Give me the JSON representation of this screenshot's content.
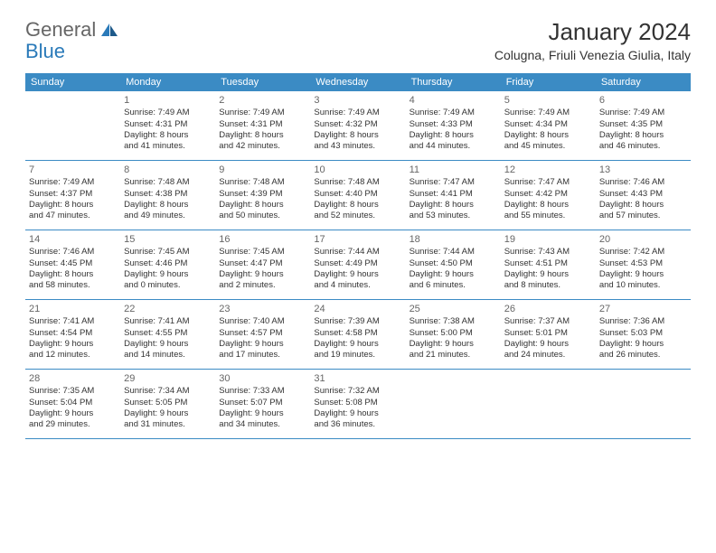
{
  "logo": {
    "text1": "General",
    "text2": "Blue"
  },
  "title": "January 2024",
  "location": "Colugna, Friuli Venezia Giulia, Italy",
  "colors": {
    "header_bg": "#3b8bc4",
    "header_text": "#ffffff",
    "border": "#3b8bc4",
    "logo_blue": "#2a7ab9",
    "logo_gray": "#666666"
  },
  "dayNames": [
    "Sunday",
    "Monday",
    "Tuesday",
    "Wednesday",
    "Thursday",
    "Friday",
    "Saturday"
  ],
  "weeks": [
    [
      null,
      {
        "n": "1",
        "sr": "Sunrise: 7:49 AM",
        "ss": "Sunset: 4:31 PM",
        "d1": "Daylight: 8 hours",
        "d2": "and 41 minutes."
      },
      {
        "n": "2",
        "sr": "Sunrise: 7:49 AM",
        "ss": "Sunset: 4:31 PM",
        "d1": "Daylight: 8 hours",
        "d2": "and 42 minutes."
      },
      {
        "n": "3",
        "sr": "Sunrise: 7:49 AM",
        "ss": "Sunset: 4:32 PM",
        "d1": "Daylight: 8 hours",
        "d2": "and 43 minutes."
      },
      {
        "n": "4",
        "sr": "Sunrise: 7:49 AM",
        "ss": "Sunset: 4:33 PM",
        "d1": "Daylight: 8 hours",
        "d2": "and 44 minutes."
      },
      {
        "n": "5",
        "sr": "Sunrise: 7:49 AM",
        "ss": "Sunset: 4:34 PM",
        "d1": "Daylight: 8 hours",
        "d2": "and 45 minutes."
      },
      {
        "n": "6",
        "sr": "Sunrise: 7:49 AM",
        "ss": "Sunset: 4:35 PM",
        "d1": "Daylight: 8 hours",
        "d2": "and 46 minutes."
      }
    ],
    [
      {
        "n": "7",
        "sr": "Sunrise: 7:49 AM",
        "ss": "Sunset: 4:37 PM",
        "d1": "Daylight: 8 hours",
        "d2": "and 47 minutes."
      },
      {
        "n": "8",
        "sr": "Sunrise: 7:48 AM",
        "ss": "Sunset: 4:38 PM",
        "d1": "Daylight: 8 hours",
        "d2": "and 49 minutes."
      },
      {
        "n": "9",
        "sr": "Sunrise: 7:48 AM",
        "ss": "Sunset: 4:39 PM",
        "d1": "Daylight: 8 hours",
        "d2": "and 50 minutes."
      },
      {
        "n": "10",
        "sr": "Sunrise: 7:48 AM",
        "ss": "Sunset: 4:40 PM",
        "d1": "Daylight: 8 hours",
        "d2": "and 52 minutes."
      },
      {
        "n": "11",
        "sr": "Sunrise: 7:47 AM",
        "ss": "Sunset: 4:41 PM",
        "d1": "Daylight: 8 hours",
        "d2": "and 53 minutes."
      },
      {
        "n": "12",
        "sr": "Sunrise: 7:47 AM",
        "ss": "Sunset: 4:42 PM",
        "d1": "Daylight: 8 hours",
        "d2": "and 55 minutes."
      },
      {
        "n": "13",
        "sr": "Sunrise: 7:46 AM",
        "ss": "Sunset: 4:43 PM",
        "d1": "Daylight: 8 hours",
        "d2": "and 57 minutes."
      }
    ],
    [
      {
        "n": "14",
        "sr": "Sunrise: 7:46 AM",
        "ss": "Sunset: 4:45 PM",
        "d1": "Daylight: 8 hours",
        "d2": "and 58 minutes."
      },
      {
        "n": "15",
        "sr": "Sunrise: 7:45 AM",
        "ss": "Sunset: 4:46 PM",
        "d1": "Daylight: 9 hours",
        "d2": "and 0 minutes."
      },
      {
        "n": "16",
        "sr": "Sunrise: 7:45 AM",
        "ss": "Sunset: 4:47 PM",
        "d1": "Daylight: 9 hours",
        "d2": "and 2 minutes."
      },
      {
        "n": "17",
        "sr": "Sunrise: 7:44 AM",
        "ss": "Sunset: 4:49 PM",
        "d1": "Daylight: 9 hours",
        "d2": "and 4 minutes."
      },
      {
        "n": "18",
        "sr": "Sunrise: 7:44 AM",
        "ss": "Sunset: 4:50 PM",
        "d1": "Daylight: 9 hours",
        "d2": "and 6 minutes."
      },
      {
        "n": "19",
        "sr": "Sunrise: 7:43 AM",
        "ss": "Sunset: 4:51 PM",
        "d1": "Daylight: 9 hours",
        "d2": "and 8 minutes."
      },
      {
        "n": "20",
        "sr": "Sunrise: 7:42 AM",
        "ss": "Sunset: 4:53 PM",
        "d1": "Daylight: 9 hours",
        "d2": "and 10 minutes."
      }
    ],
    [
      {
        "n": "21",
        "sr": "Sunrise: 7:41 AM",
        "ss": "Sunset: 4:54 PM",
        "d1": "Daylight: 9 hours",
        "d2": "and 12 minutes."
      },
      {
        "n": "22",
        "sr": "Sunrise: 7:41 AM",
        "ss": "Sunset: 4:55 PM",
        "d1": "Daylight: 9 hours",
        "d2": "and 14 minutes."
      },
      {
        "n": "23",
        "sr": "Sunrise: 7:40 AM",
        "ss": "Sunset: 4:57 PM",
        "d1": "Daylight: 9 hours",
        "d2": "and 17 minutes."
      },
      {
        "n": "24",
        "sr": "Sunrise: 7:39 AM",
        "ss": "Sunset: 4:58 PM",
        "d1": "Daylight: 9 hours",
        "d2": "and 19 minutes."
      },
      {
        "n": "25",
        "sr": "Sunrise: 7:38 AM",
        "ss": "Sunset: 5:00 PM",
        "d1": "Daylight: 9 hours",
        "d2": "and 21 minutes."
      },
      {
        "n": "26",
        "sr": "Sunrise: 7:37 AM",
        "ss": "Sunset: 5:01 PM",
        "d1": "Daylight: 9 hours",
        "d2": "and 24 minutes."
      },
      {
        "n": "27",
        "sr": "Sunrise: 7:36 AM",
        "ss": "Sunset: 5:03 PM",
        "d1": "Daylight: 9 hours",
        "d2": "and 26 minutes."
      }
    ],
    [
      {
        "n": "28",
        "sr": "Sunrise: 7:35 AM",
        "ss": "Sunset: 5:04 PM",
        "d1": "Daylight: 9 hours",
        "d2": "and 29 minutes."
      },
      {
        "n": "29",
        "sr": "Sunrise: 7:34 AM",
        "ss": "Sunset: 5:05 PM",
        "d1": "Daylight: 9 hours",
        "d2": "and 31 minutes."
      },
      {
        "n": "30",
        "sr": "Sunrise: 7:33 AM",
        "ss": "Sunset: 5:07 PM",
        "d1": "Daylight: 9 hours",
        "d2": "and 34 minutes."
      },
      {
        "n": "31",
        "sr": "Sunrise: 7:32 AM",
        "ss": "Sunset: 5:08 PM",
        "d1": "Daylight: 9 hours",
        "d2": "and 36 minutes."
      },
      null,
      null,
      null
    ]
  ]
}
